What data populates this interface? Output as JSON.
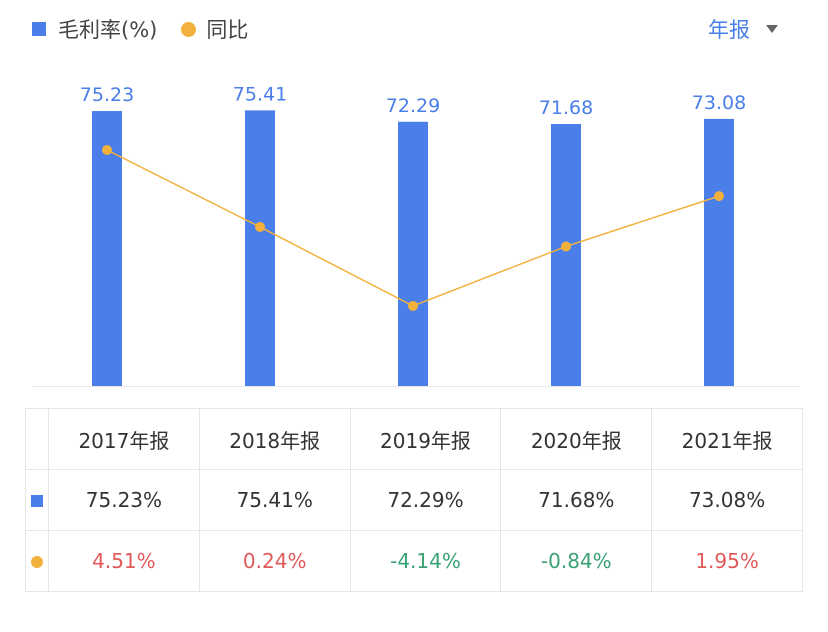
{
  "chart_data": {
    "type": "bar+line",
    "categories": [
      "2017年报",
      "2018年报",
      "2019年报",
      "2020年报",
      "2021年报"
    ],
    "series": [
      {
        "name": "毛利率(%)",
        "type": "bar",
        "color": "#4a7ee8",
        "values": [
          75.23,
          75.41,
          72.29,
          71.68,
          73.08
        ],
        "labels": [
          "75.23",
          "75.41",
          "72.29",
          "71.68",
          "73.08"
        ]
      },
      {
        "name": "同比",
        "type": "line",
        "color": "#f2b13c",
        "values": [
          4.51,
          0.24,
          -4.14,
          -0.84,
          1.95
        ]
      }
    ],
    "legend": "top-left"
  },
  "period_selector": {
    "label": "年报"
  },
  "table": {
    "headers": [
      "2017年报",
      "2018年报",
      "2019年报",
      "2020年报",
      "2021年报"
    ],
    "gross_margin": [
      "75.23%",
      "75.41%",
      "72.29%",
      "71.68%",
      "73.08%"
    ],
    "yoy": [
      "4.51%",
      "0.24%",
      "-4.14%",
      "-0.84%",
      "1.95%"
    ]
  },
  "colors": {
    "positive": "#e05a5a",
    "negative": "#3aa276"
  }
}
